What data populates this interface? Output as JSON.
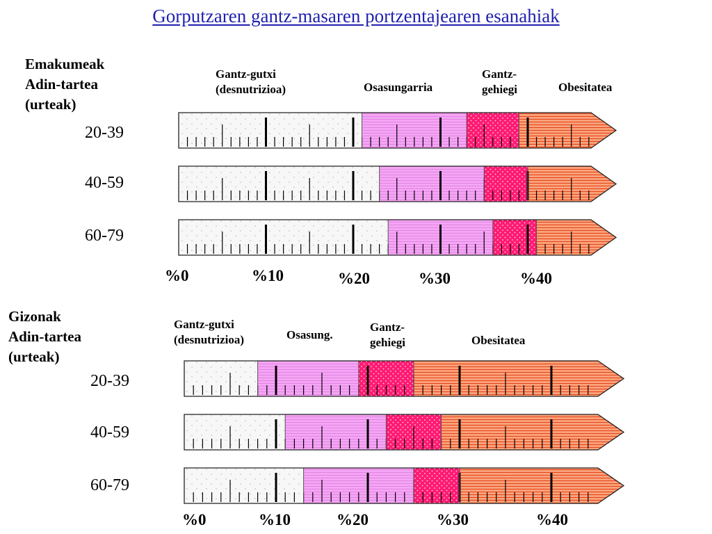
{
  "title": "Gorputzaren gantz-masaren portzentajearen esanahiak",
  "colors": {
    "under": "#f7f7f7",
    "healthy": "#f4a6f4",
    "over": "#ff1a73",
    "obese": "#f9a27a"
  },
  "groups": [
    {
      "id": "women",
      "heading": [
        "Emakumeak",
        "Adin-tartea",
        "(urteak)"
      ],
      "categories": [
        {
          "lines": [
            "Gantz-gutxi",
            "(desnutrizioa)"
          ]
        },
        {
          "lines": [
            "Osasungarria"
          ]
        },
        {
          "lines": [
            "Gantz-",
            "gehiegi"
          ]
        },
        {
          "lines": [
            "Obesitatea"
          ]
        }
      ],
      "percent_labels": [
        "%0",
        "%10",
        "%20",
        "%30",
        "%40"
      ],
      "rows": [
        {
          "age": "20-39",
          "thresholds": [
            21,
            33,
            39
          ]
        },
        {
          "age": "40-59",
          "thresholds": [
            23,
            35,
            40
          ]
        },
        {
          "age": "60-79",
          "thresholds": [
            24,
            36,
            41
          ]
        }
      ]
    },
    {
      "id": "men",
      "heading": [
        "Gizonak",
        "Adin-tartea",
        "(urteak)"
      ],
      "categories": [
        {
          "lines": [
            "Gantz-gutxi",
            "(desnutrizioa)"
          ]
        },
        {
          "lines": [
            "Osasung."
          ]
        },
        {
          "lines": [
            "Gantz-",
            "gehiegi"
          ]
        },
        {
          "lines": [
            "Obesitatea"
          ]
        }
      ],
      "percent_labels": [
        "%0",
        "%10",
        "%20",
        "%30",
        "%40"
      ],
      "rows": [
        {
          "age": "20-39",
          "thresholds": [
            8,
            19,
            25
          ]
        },
        {
          "age": "40-59",
          "thresholds": [
            11,
            22,
            28
          ]
        },
        {
          "age": "60-79",
          "thresholds": [
            13,
            25,
            30
          ]
        }
      ]
    }
  ]
}
